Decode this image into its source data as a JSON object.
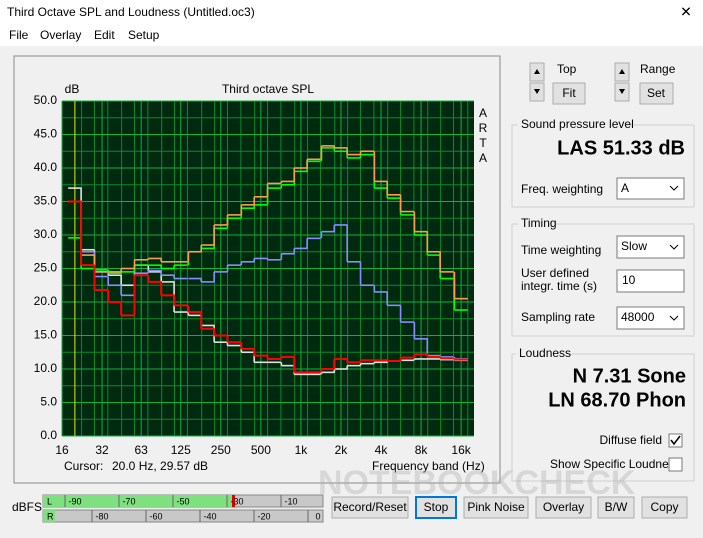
{
  "window": {
    "title": "Third Octave SPL and Loudness (Untitled.oc3)",
    "close": "✕"
  },
  "menu": [
    "File",
    "Overlay",
    "Edit",
    "Setup"
  ],
  "chart_data": {
    "type": "line",
    "title": "Third octave SPL",
    "y_label": "dB",
    "side_label": "ARTA",
    "x_label": "Frequency band (Hz)",
    "x_scale": "log",
    "step": true,
    "grid": true,
    "xlim": [
      16,
      20000
    ],
    "xticks": [
      16,
      32,
      63,
      125,
      250,
      500,
      {
        "value": 1000,
        "label": "1k"
      },
      {
        "value": 2000,
        "label": "2k"
      },
      {
        "value": 4000,
        "label": "4k"
      },
      {
        "value": 8000,
        "label": "8k"
      },
      {
        "value": 16000,
        "label": "16k"
      }
    ],
    "ylim": [
      0,
      50
    ],
    "yticks": [
      {
        "value": 0,
        "label": "0.0"
      },
      {
        "value": 5,
        "label": "5.0"
      },
      {
        "value": 10,
        "label": "10.0"
      },
      {
        "value": 15,
        "label": "15.0"
      },
      {
        "value": 20,
        "label": "20.0"
      },
      {
        "value": 25,
        "label": "25.0"
      },
      {
        "value": 30,
        "label": "30.0"
      },
      {
        "value": 35,
        "label": "35.0"
      },
      {
        "value": 40,
        "label": "40.0"
      },
      {
        "value": 45,
        "label": "45.0"
      },
      {
        "value": 50,
        "label": "50.0"
      }
    ],
    "x": [
      20,
      25,
      31.5,
      40,
      50,
      63,
      80,
      100,
      125,
      160,
      200,
      250,
      315,
      400,
      500,
      630,
      800,
      1000,
      1250,
      1600,
      2000,
      2500,
      3150,
      4000,
      5000,
      6300,
      8000,
      10000,
      12500,
      16000
    ],
    "series": [
      {
        "color": "#e0e0e0",
        "values": [
          37,
          27.8,
          24.5,
          24,
          22.5,
          25.5,
          24.5,
          23,
          18.5,
          18,
          16.5,
          14,
          13.5,
          12.5,
          11,
          11,
          10.5,
          9.2,
          9.2,
          9.5,
          10,
          10.5,
          10.8,
          11,
          11.2,
          11.3,
          11.5,
          11.5,
          11.4,
          11.3
        ]
      },
      {
        "color": "#8c8cff",
        "values": [
          35,
          27.5,
          23.8,
          22.5,
          21,
          24.3,
          24.7,
          24,
          23.5,
          23.5,
          23,
          24.5,
          25.5,
          26,
          26.5,
          26.3,
          27.2,
          28,
          29.5,
          30.5,
          31.5,
          26,
          22.5,
          21.5,
          19.5,
          17,
          14.5,
          12,
          11.8,
          11.5
        ]
      },
      {
        "color": "#00ff00",
        "values": [
          29.57,
          25,
          24.8,
          24.3,
          24.5,
          25.5,
          25.5,
          25,
          25.5,
          27.5,
          28,
          31,
          32.5,
          34,
          34.5,
          37,
          37.5,
          39.5,
          41,
          43,
          42.5,
          41.5,
          42,
          37,
          35.5,
          33,
          30,
          27,
          23.5,
          18.8
        ]
      },
      {
        "color": "#ff9a50",
        "values": [
          35,
          27,
          24.5,
          24.5,
          25,
          26.3,
          26.5,
          26,
          26,
          27.5,
          28.5,
          31.5,
          33,
          34.5,
          35.7,
          37.7,
          38,
          40,
          41.3,
          43.3,
          43,
          42,
          42.5,
          38,
          36,
          33.5,
          30.5,
          27.5,
          24.5,
          20.5
        ]
      },
      {
        "color": "#ff0000",
        "values": [
          35,
          25.5,
          21.8,
          20,
          18,
          24,
          23,
          21,
          19.5,
          18.5,
          16,
          15,
          14,
          13,
          12,
          11.5,
          11.8,
          9.5,
          9.5,
          10,
          11.5,
          11,
          11.3,
          11.3,
          11.2,
          11.7,
          12.2,
          11.8,
          11.6,
          11.4
        ]
      }
    ]
  },
  "cursor": {
    "label": "Cursor:",
    "value": "20.0 Hz, 29.57 dB"
  },
  "controls": {
    "top_label": "Top",
    "fit": "Fit",
    "range_label": "Range",
    "set": "Set"
  },
  "spl": {
    "title": "Sound pressure level",
    "reading": "LAS 51.33 dB",
    "freq_weighting_label": "Freq. weighting",
    "freq_weighting": "A"
  },
  "timing": {
    "title": "Timing",
    "time_weighting_label": "Time weighting",
    "time_weighting": "Slow",
    "integr_label_1": "User defined",
    "integr_label_2": "integr. time (s)",
    "integr_time": "10",
    "sampling_rate_label": "Sampling rate",
    "sampling_rate": "48000"
  },
  "loudness": {
    "title": "Loudness",
    "n": "N 7.31 Sone",
    "ln": "LN 68.70 Phon",
    "diffuse_field": "Diffuse field",
    "specific": "Show Specific Loudness"
  },
  "meter": {
    "label": "dBFS",
    "l": "L",
    "r": "R",
    "l_ticks": [
      "-90",
      "-70",
      "-50",
      "-30",
      "-10"
    ],
    "r_ticks": [
      "-80",
      "-60",
      "-40",
      "-20",
      "0"
    ]
  },
  "buttons": [
    "Record/Reset",
    "Stop",
    "Pink Noise",
    "Overlay",
    "B/W",
    "Copy"
  ],
  "watermark": "NOTEBOOKCHECK"
}
